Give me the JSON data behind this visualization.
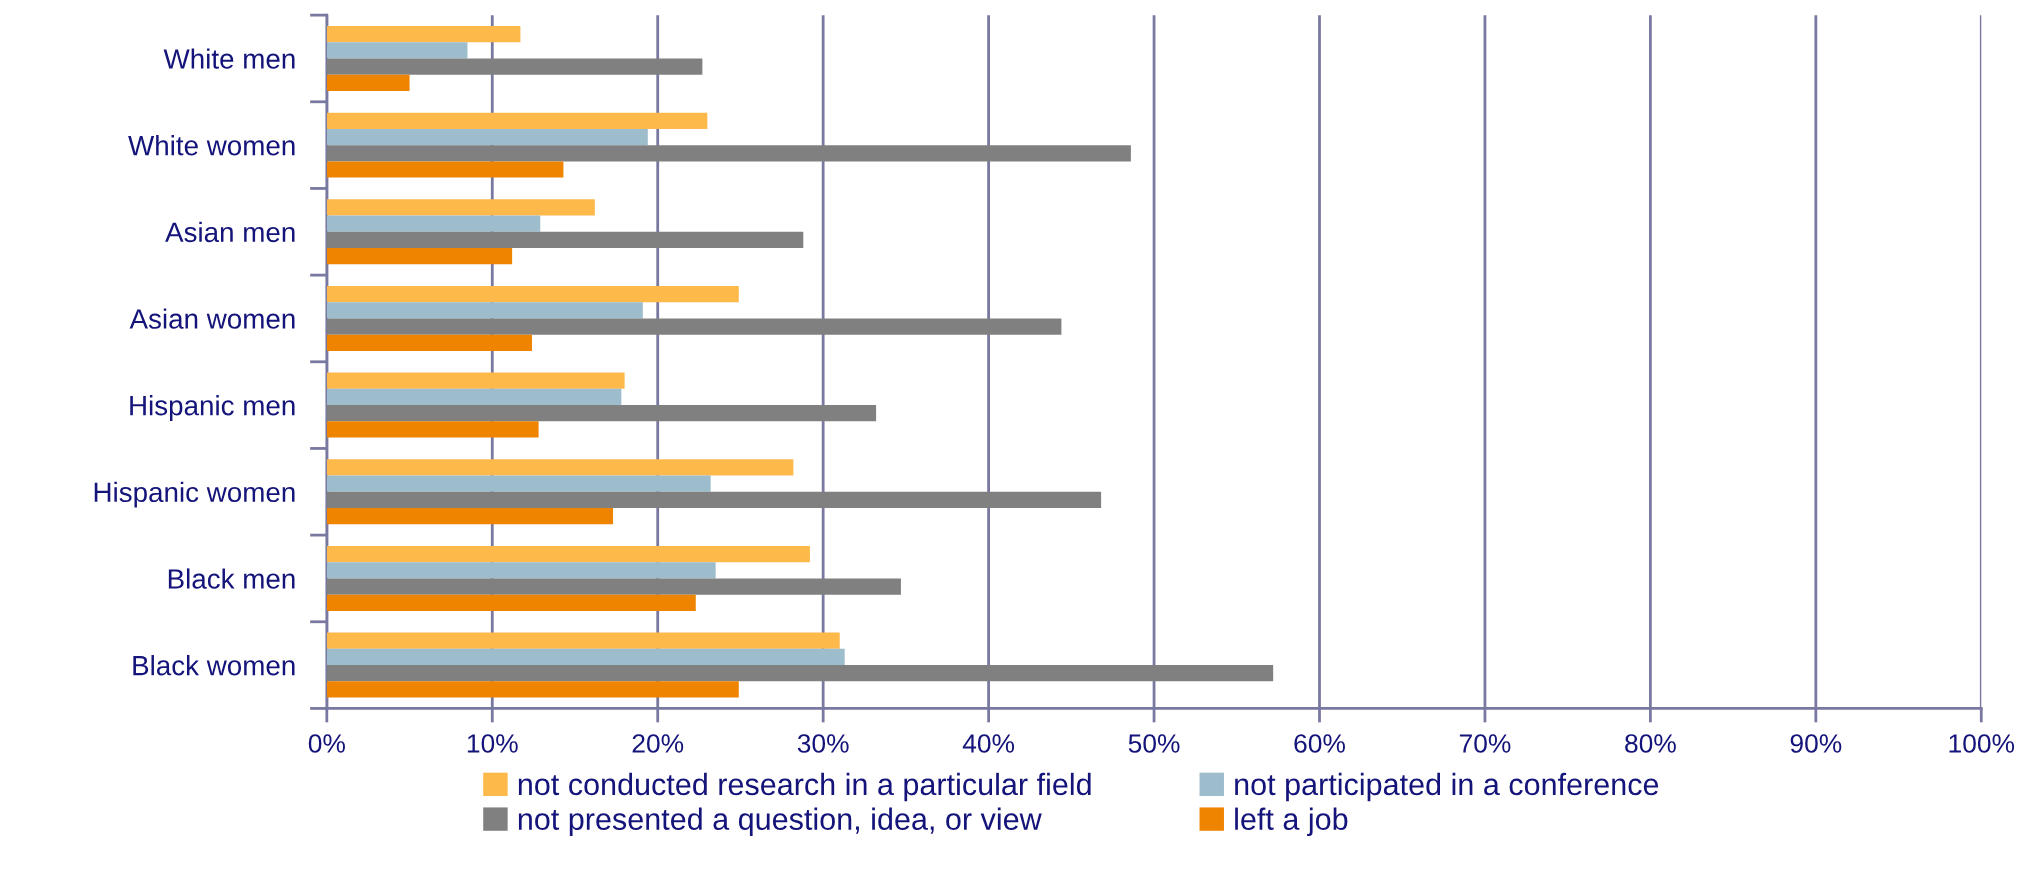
{
  "chart_data": {
    "type": "bar",
    "orientation": "horizontal",
    "categories": [
      "White men",
      "White women",
      "Asian men",
      "Asian women",
      "Hispanic men",
      "Hispanic women",
      "Black men",
      "Black women"
    ],
    "series": [
      {
        "name": "not conducted research in a particular field",
        "color": "#fdb94a",
        "values": [
          11.7,
          23.0,
          16.2,
          24.9,
          18.0,
          28.2,
          29.2,
          31.0
        ]
      },
      {
        "name": "not participated in a conference",
        "color": "#9dbccc",
        "values": [
          8.5,
          19.4,
          12.9,
          19.1,
          17.8,
          23.2,
          23.5,
          31.3
        ]
      },
      {
        "name": "not presented a question, idea, or view",
        "color": "#808080",
        "values": [
          22.7,
          48.6,
          28.8,
          44.4,
          33.2,
          46.8,
          34.7,
          57.2
        ]
      },
      {
        "name": "left a job",
        "color": "#ee8400",
        "values": [
          5.0,
          14.3,
          11.2,
          12.4,
          12.8,
          17.3,
          22.3,
          24.9
        ]
      }
    ],
    "xlim": [
      0,
      100
    ],
    "xticks": [
      {
        "value": 0,
        "label": "0%"
      },
      {
        "value": 10,
        "label": "10%"
      },
      {
        "value": 20,
        "label": "20%"
      },
      {
        "value": 30,
        "label": "30%"
      },
      {
        "value": 40,
        "label": "40%"
      },
      {
        "value": 50,
        "label": "50%"
      },
      {
        "value": 60,
        "label": "60%"
      },
      {
        "value": 70,
        "label": "70%"
      },
      {
        "value": 80,
        "label": "80%"
      },
      {
        "value": 90,
        "label": "90%"
      },
      {
        "value": 100,
        "label": "100%"
      }
    ],
    "grid": "x",
    "legend": "bottom"
  }
}
